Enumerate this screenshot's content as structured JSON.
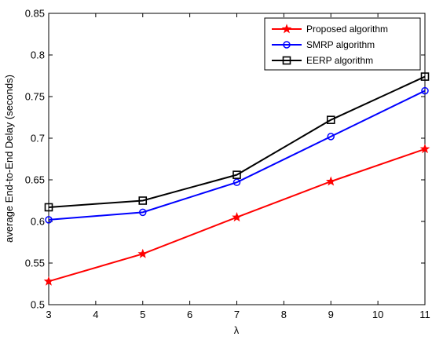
{
  "chart_data": {
    "type": "line",
    "xlabel": "λ",
    "ylabel": "average End-to-End Delay (seconds)",
    "xlim": [
      3,
      11
    ],
    "ylim": [
      0.5,
      0.85
    ],
    "xticks": [
      3,
      4,
      5,
      6,
      7,
      8,
      9,
      10,
      11
    ],
    "yticks": [
      0.5,
      0.55,
      0.6,
      0.65,
      0.7,
      0.75,
      0.8,
      0.85
    ],
    "ytick_labels": [
      "0.5",
      "0.55",
      "0.6",
      "0.65",
      "0.7",
      "0.75",
      "0.8",
      "0.85"
    ],
    "x": [
      3,
      5,
      7,
      9,
      11
    ],
    "grid": false,
    "legend_position": "top-right",
    "series": [
      {
        "name": "Proposed algorithm",
        "color": "#ff0000",
        "marker": "star",
        "values": [
          0.528,
          0.561,
          0.605,
          0.648,
          0.687
        ]
      },
      {
        "name": "SMRP algorithm",
        "color": "#0000ff",
        "marker": "circle",
        "values": [
          0.602,
          0.611,
          0.647,
          0.702,
          0.757
        ]
      },
      {
        "name": "EERP algorithm",
        "color": "#000000",
        "marker": "square",
        "values": [
          0.617,
          0.625,
          0.656,
          0.722,
          0.774
        ]
      }
    ]
  }
}
